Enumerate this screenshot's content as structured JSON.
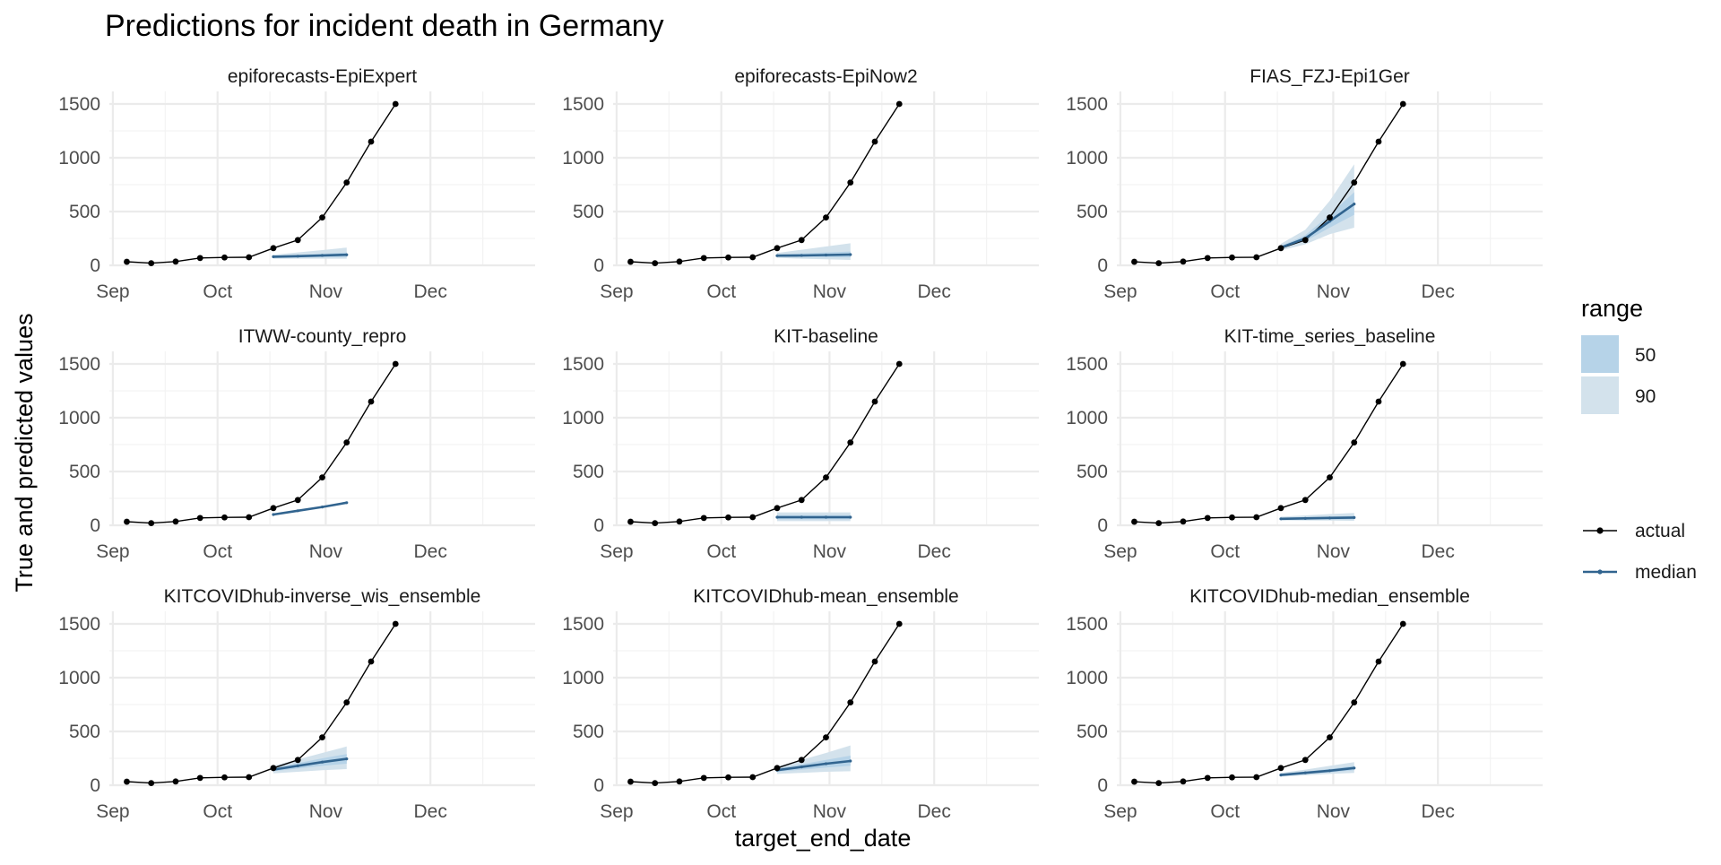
{
  "chart_data": {
    "type": "line",
    "title": "Predictions for incident death in Germany",
    "xlabel": "target_end_date",
    "ylabel": "True and predicted values",
    "x_ticks": [
      "Sep",
      "Oct",
      "Nov",
      "Dec"
    ],
    "y_ticks": [
      0,
      500,
      1000,
      1500
    ],
    "ylim": [
      0,
      1500
    ],
    "grid": true,
    "actual": {
      "name": "actual",
      "color": "#000000",
      "x": [
        "2020-09-05",
        "2020-09-12",
        "2020-09-19",
        "2020-09-26",
        "2020-10-03",
        "2020-10-10",
        "2020-10-17",
        "2020-10-24",
        "2020-10-31",
        "2020-11-07",
        "2020-11-14",
        "2020-11-21"
      ],
      "values": [
        33,
        20,
        35,
        68,
        73,
        75,
        160,
        235,
        445,
        770,
        1150,
        1500
      ]
    },
    "legend": {
      "range_title": "range",
      "range_items": [
        {
          "label": "50",
          "color": "#b6d3e8"
        },
        {
          "label": "90",
          "color": "#d3e2ec"
        }
      ],
      "line_items": [
        {
          "label": "actual",
          "color": "#000000"
        },
        {
          "label": "median",
          "color": "#31648f"
        }
      ]
    },
    "colors": {
      "median": "#31648f",
      "band50": "#b6d3e8",
      "band90": "#d3e2ec"
    },
    "facets": [
      {
        "name": "epiforecasts-EpiExpert",
        "median": [
          80,
          85,
          92,
          98
        ],
        "q50": [
          [
            72,
            88
          ],
          [
            74,
            98
          ],
          [
            76,
            108
          ],
          [
            78,
            118
          ]
        ],
        "q90": [
          [
            62,
            98
          ],
          [
            62,
            120
          ],
          [
            62,
            142
          ],
          [
            62,
            165
          ]
        ]
      },
      {
        "name": "epiforecasts-EpiNow2",
        "median": [
          90,
          92,
          96,
          100
        ],
        "q50": [
          [
            80,
            100
          ],
          [
            78,
            110
          ],
          [
            76,
            120
          ],
          [
            74,
            128
          ]
        ],
        "q90": [
          [
            70,
            115
          ],
          [
            62,
            145
          ],
          [
            56,
            175
          ],
          [
            50,
            205
          ]
        ]
      },
      {
        "name": "FIAS_FZJ-Epi1Ger",
        "median": [
          165,
          250,
          410,
          570
        ],
        "q50": [
          [
            155,
            180
          ],
          [
            225,
            280
          ],
          [
            350,
            470
          ],
          [
            470,
            680
          ]
        ],
        "q90": [
          [
            140,
            200
          ],
          [
            195,
            330
          ],
          [
            290,
            600
          ],
          [
            350,
            940
          ]
        ]
      },
      {
        "name": "ITWW-county_repro",
        "median": [
          100,
          135,
          170,
          210
        ],
        "q50": [
          [
            98,
            102
          ],
          [
            132,
            138
          ],
          [
            167,
            173
          ],
          [
            207,
            213
          ]
        ],
        "q90": [
          [
            96,
            104
          ],
          [
            130,
            140
          ],
          [
            165,
            175
          ],
          [
            205,
            215
          ]
        ]
      },
      {
        "name": "KIT-baseline",
        "median": [
          75,
          75,
          75,
          75
        ],
        "q50": [
          [
            55,
            95
          ],
          [
            55,
            95
          ],
          [
            55,
            95
          ],
          [
            55,
            95
          ]
        ],
        "q90": [
          [
            38,
            120
          ],
          [
            38,
            120
          ],
          [
            38,
            120
          ],
          [
            38,
            120
          ]
        ]
      },
      {
        "name": "KIT-time_series_baseline",
        "median": [
          60,
          64,
          68,
          72
        ],
        "q50": [
          [
            52,
            70
          ],
          [
            53,
            76
          ],
          [
            54,
            82
          ],
          [
            55,
            88
          ]
        ],
        "q90": [
          [
            45,
            80
          ],
          [
            44,
            92
          ],
          [
            43,
            104
          ],
          [
            42,
            115
          ]
        ]
      },
      {
        "name": "KITCOVIDhub-inverse_wis_ensemble",
        "median": [
          145,
          180,
          215,
          245
        ],
        "q50": [
          [
            130,
            160
          ],
          [
            155,
            205
          ],
          [
            180,
            250
          ],
          [
            200,
            290
          ]
        ],
        "q90": [
          [
            110,
            180
          ],
          [
            125,
            240
          ],
          [
            140,
            300
          ],
          [
            150,
            360
          ]
        ]
      },
      {
        "name": "KITCOVIDhub-mean_ensemble",
        "median": [
          140,
          170,
          200,
          225
        ],
        "q50": [
          [
            125,
            155
          ],
          [
            145,
            195
          ],
          [
            165,
            235
          ],
          [
            180,
            275
          ]
        ],
        "q90": [
          [
            105,
            175
          ],
          [
            115,
            235
          ],
          [
            125,
            300
          ],
          [
            130,
            370
          ]
        ]
      },
      {
        "name": "KITCOVIDhub-median_ensemble",
        "median": [
          95,
          115,
          135,
          160
        ],
        "q50": [
          [
            88,
            103
          ],
          [
            105,
            127
          ],
          [
            120,
            152
          ],
          [
            140,
            180
          ]
        ],
        "q90": [
          [
            80,
            115
          ],
          [
            92,
            145
          ],
          [
            105,
            180
          ],
          [
            115,
            215
          ]
        ]
      }
    ],
    "forecast_x": [
      "2020-10-17",
      "2020-10-24",
      "2020-10-31",
      "2020-11-07"
    ]
  }
}
